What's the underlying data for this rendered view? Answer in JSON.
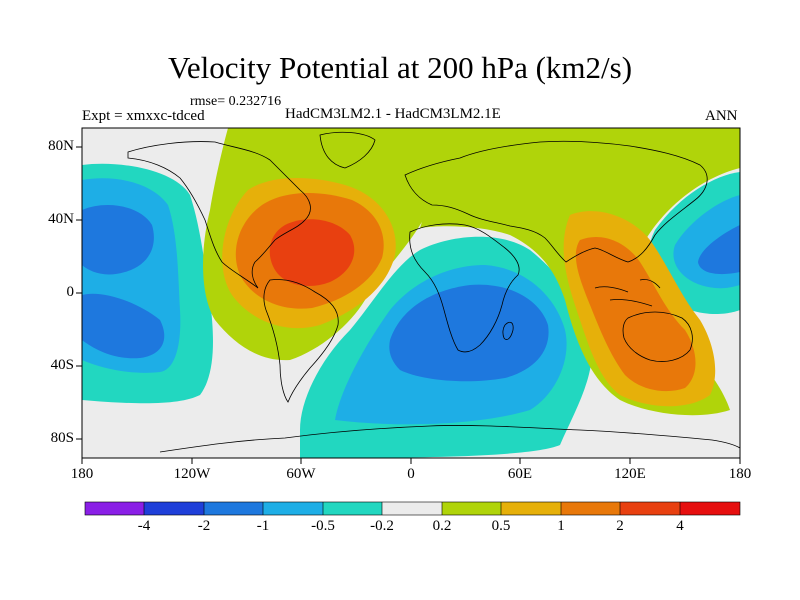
{
  "title": "Velocity Potential at 200 hPa (km2/s)",
  "rmse": "rmse= 0.232716",
  "experiment": "Expt = xmxxc-tdced",
  "models": "HadCM3LM2.1 - HadCM3LM2.1E",
  "season": "ANN",
  "axes": {
    "y_ticks": [
      "80N",
      "40N",
      "0",
      "40S",
      "80S"
    ],
    "x_ticks": [
      "180",
      "120W",
      "60W",
      "0",
      "60E",
      "120E",
      "180"
    ]
  },
  "colorbar": {
    "labels": [
      "-4",
      "-2",
      "-1",
      "-0.5",
      "-0.2",
      "0.2",
      "0.5",
      "1",
      "2",
      "4"
    ],
    "colors": [
      "#8a1fe6",
      "#1f3fd9",
      "#1e78de",
      "#1eaee6",
      "#22d7c0",
      "#ececec",
      "#b0d40a",
      "#e6b00a",
      "#e8780a",
      "#e84010",
      "#e60f0f"
    ]
  },
  "fields": {
    "palette": {
      "neutral": "#ececec",
      "neg_02": "#22d7c0",
      "neg_05": "#1eaee6",
      "neg_1": "#1e78de",
      "pos_02": "#b0d40a",
      "pos_05": "#e6b00a",
      "pos_1": "#e8780a",
      "pos_2": "#e84010"
    }
  }
}
